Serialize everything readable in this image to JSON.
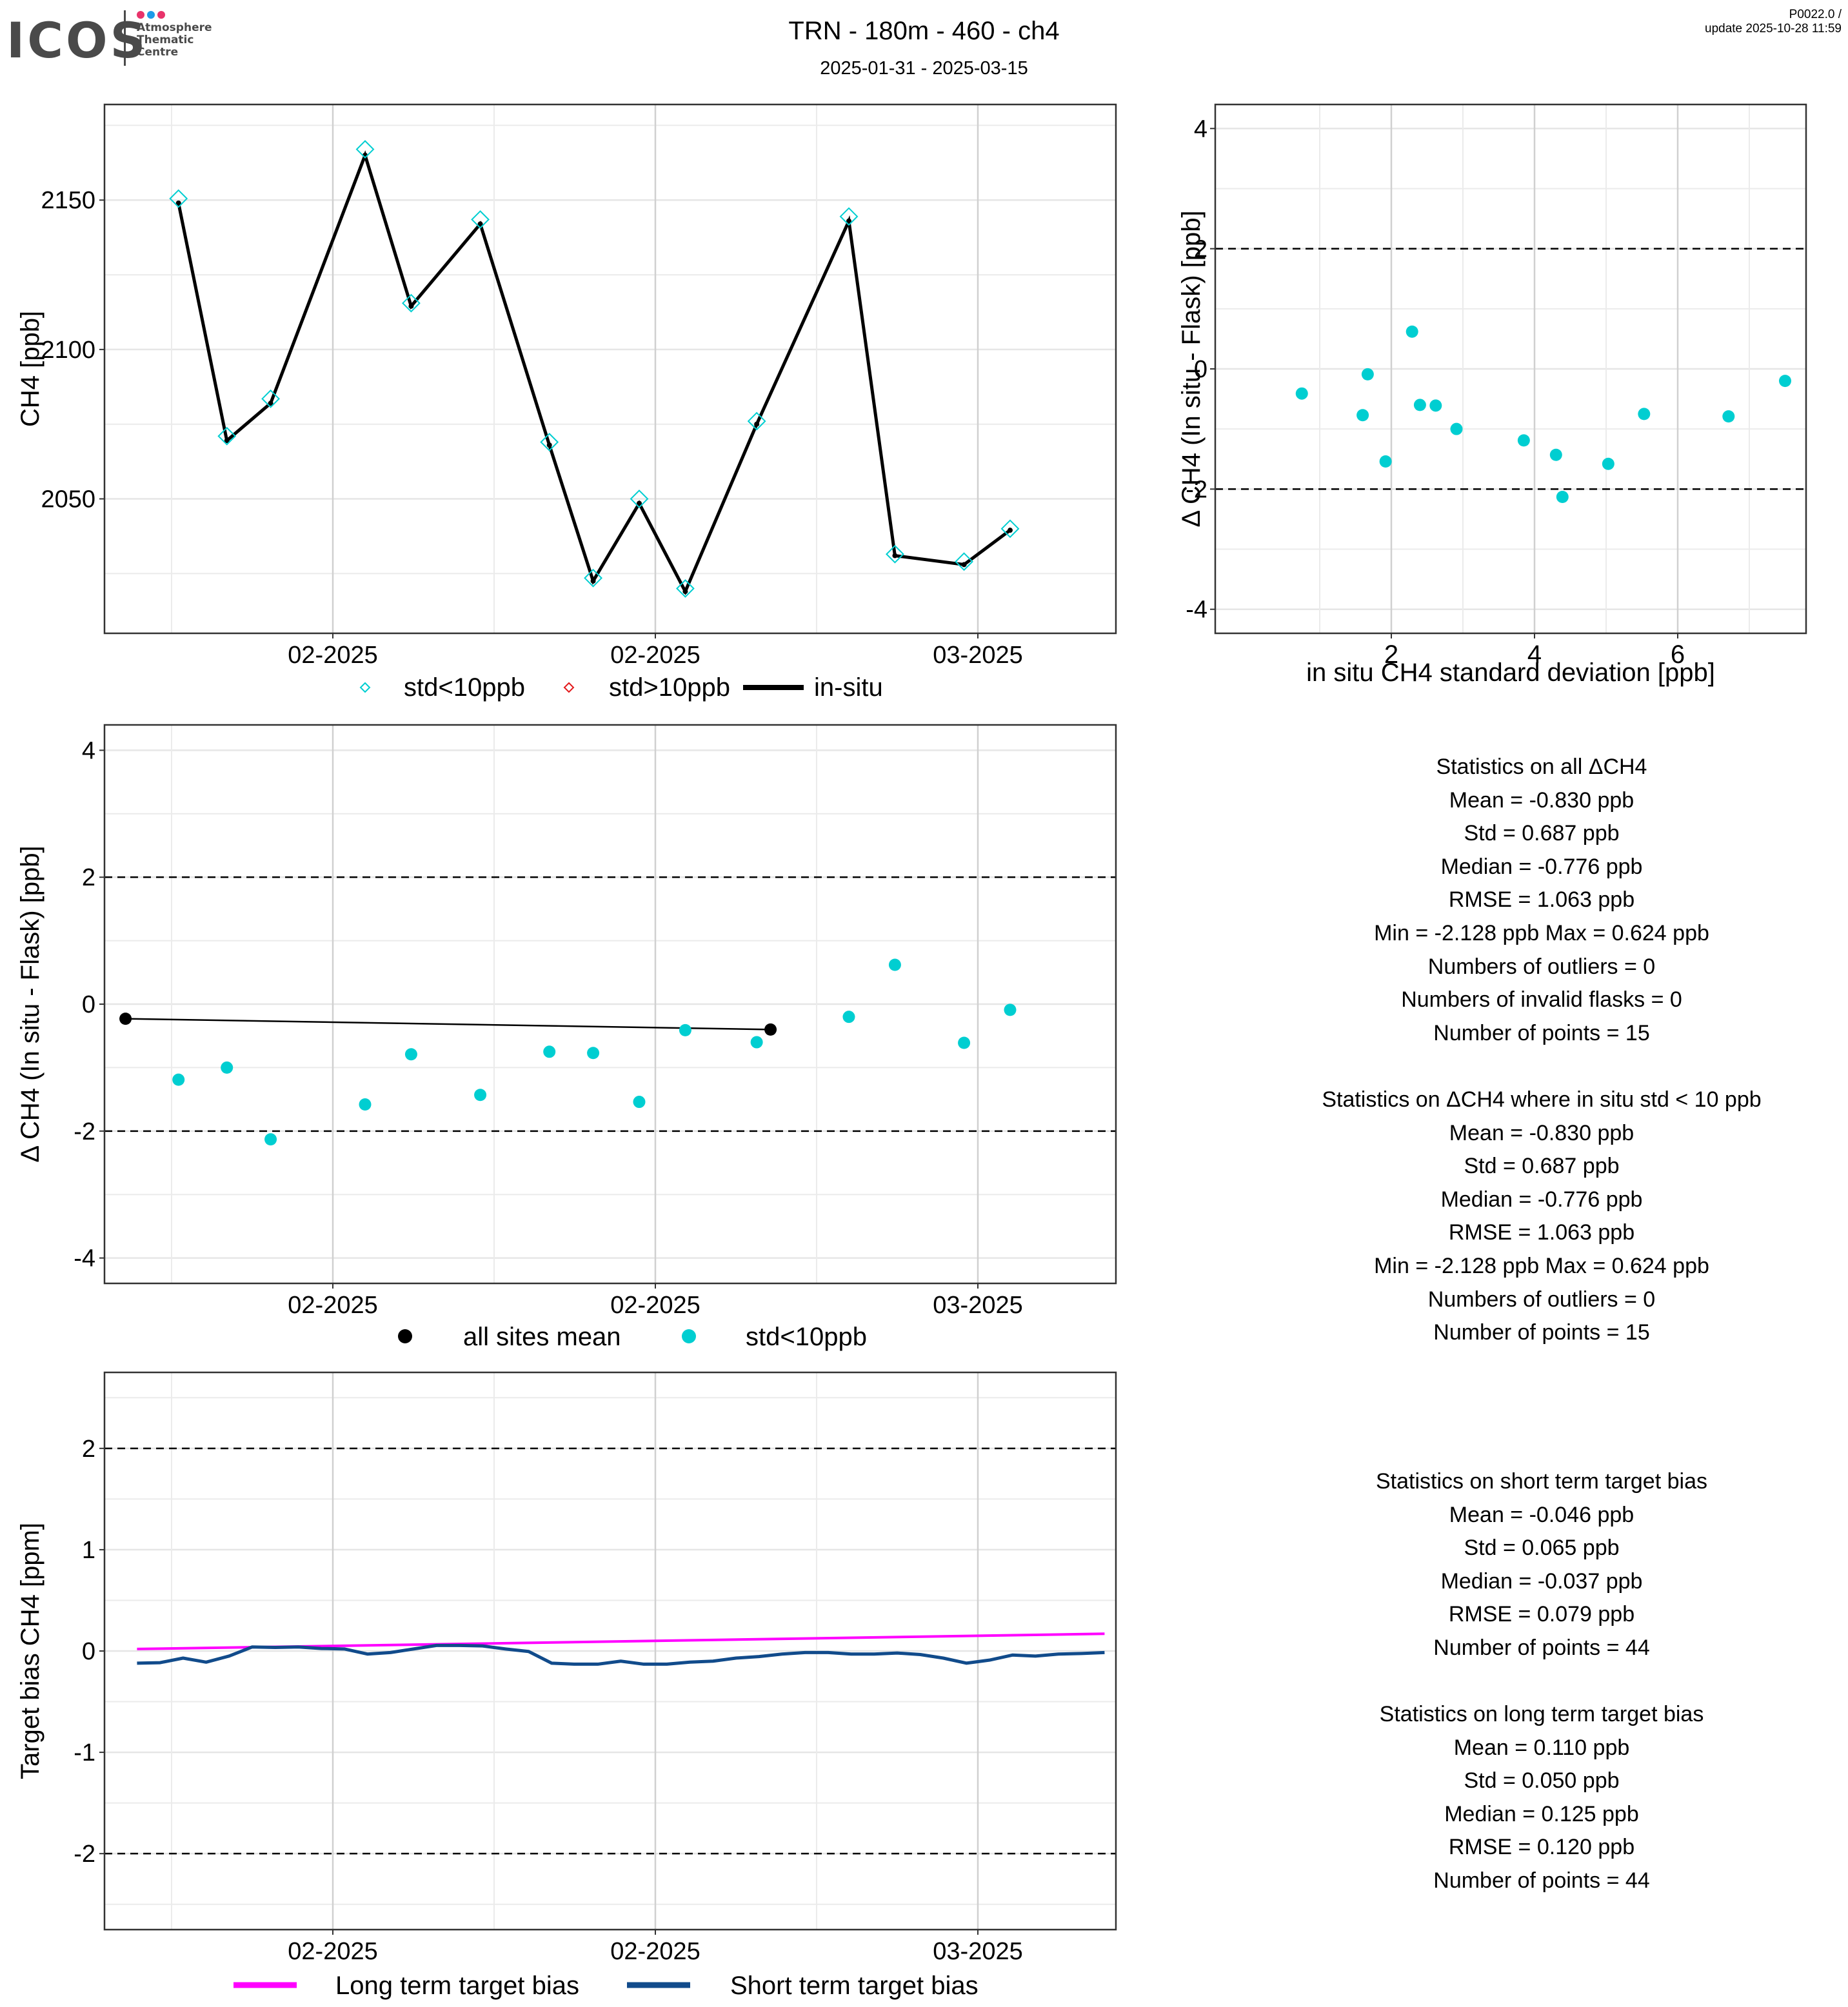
{
  "header": {
    "logo": {
      "name": "ICOS",
      "sub": [
        "Atmosphere",
        "Thematic",
        "Centre"
      ],
      "dot_colors": [
        "#e8336b",
        "#1e9be8",
        "#e8336b"
      ]
    },
    "title": "TRN - 180m - 460 - ch4",
    "subtitle": "2025-01-31 - 2025-03-15",
    "version": "P0022.0 /",
    "update": "update  2025-10-28 11:59"
  },
  "colors": {
    "cyan": "#00CED1",
    "red": "#E31A1C",
    "black": "#000000",
    "magenta": "#FF00FF",
    "navy": "#114B8B"
  },
  "chart_data": [
    {
      "id": "timeseries",
      "type": "line",
      "ylabel": "CH4 [ppb]",
      "ylim": [
        2005,
        2182
      ],
      "yticks": [
        2050,
        2100,
        2150
      ],
      "xlim_days": [
        -11.0,
        11.0
      ],
      "x_day_note": "days relative to 2025-02-15 tick",
      "xticks": [
        {
          "day": -14,
          "label": "02-2025"
        },
        {
          "day": 0,
          "label": "02-2025"
        },
        {
          "day": 14,
          "label": "03-2025"
        }
      ],
      "x_days": [
        -20.7,
        -18.6,
        -16.7,
        -12.6,
        -10.6,
        -7.6,
        -4.6,
        -2.7,
        -0.7,
        1.3,
        4.4,
        8.4,
        10.4,
        13.4,
        15.4
      ],
      "insitu": [
        2149,
        2069.5,
        2082,
        2165,
        2114.5,
        2142,
        2068,
        2022.5,
        2048.5,
        2019,
        2075,
        2143,
        2031,
        2028,
        2039.5
      ],
      "flask": [
        2150.5,
        2071,
        2083.5,
        2167,
        2115.5,
        2143.5,
        2069,
        2023.5,
        2050,
        2020,
        2076,
        2144.5,
        2031.5,
        2029,
        2040
      ],
      "legend": [
        {
          "label": "std<10ppb",
          "marker": "diamond-open",
          "color": "#00CED1"
        },
        {
          "label": "std>10ppb",
          "marker": "diamond-open",
          "color": "#E31A1C"
        },
        {
          "label": "in-situ",
          "marker": "line",
          "color": "#000000"
        }
      ],
      "grid": true
    },
    {
      "id": "std-scatter",
      "type": "scatter",
      "xlabel": "in situ CH4 standard deviation [ppb]",
      "ylabel": "Δ CH4 (In situ - Flask) [ppb]",
      "xlim": [
        0.35,
        7.85
      ],
      "ylim": [
        -4.4,
        4.4
      ],
      "xticks": [
        2,
        4,
        6
      ],
      "yticks": [
        -4,
        -2,
        0,
        2,
        4
      ],
      "hlines": [
        2,
        -2
      ],
      "x": [
        0.75,
        1.6,
        1.67,
        1.92,
        2.29,
        2.4,
        2.62,
        2.91,
        3.85,
        4.3,
        4.39,
        5.03,
        5.53,
        6.71,
        7.5
      ],
      "y": [
        -0.41,
        -0.77,
        -0.09,
        -1.54,
        0.62,
        -0.6,
        -0.61,
        -1.0,
        -1.19,
        -1.43,
        -2.13,
        -1.58,
        -0.75,
        -0.79,
        -0.2
      ],
      "color": "#00CED1",
      "grid": true
    },
    {
      "id": "delta-timeseries",
      "type": "scatter",
      "ylabel": "Δ CH4 (In situ - Flask) [ppb]",
      "ylim": [
        -4.4,
        4.4
      ],
      "yticks": [
        -4,
        -2,
        0,
        2,
        4
      ],
      "hlines": [
        2,
        -2
      ],
      "xticks": [
        {
          "day": -14,
          "label": "02-2025"
        },
        {
          "day": 0,
          "label": "02-2025"
        },
        {
          "day": 14,
          "label": "03-2025"
        }
      ],
      "std_lt10": {
        "x_days": [
          -20.7,
          -18.6,
          -16.7,
          -12.6,
          -10.6,
          -7.6,
          -4.6,
          -2.7,
          -0.7,
          1.3,
          4.4,
          8.4,
          10.4,
          13.4,
          15.4
        ],
        "y": [
          -1.19,
          -1.0,
          -2.13,
          -1.58,
          -0.79,
          -1.43,
          -0.75,
          -0.77,
          -1.54,
          -0.41,
          -0.6,
          -0.2,
          0.62,
          -0.61,
          -0.09
        ]
      },
      "all_sites_mean": {
        "x_days": [
          -23.0,
          5.0
        ],
        "y": [
          -0.23,
          -0.4
        ]
      },
      "legend": [
        {
          "label": "all sites mean",
          "marker": "dot",
          "color": "#000000"
        },
        {
          "label": "std<10ppb",
          "marker": "dot",
          "color": "#00CED1"
        }
      ],
      "grid": true
    },
    {
      "id": "target-bias",
      "type": "line",
      "ylabel": "Target bias CH4 [ppm]",
      "ylim": [
        -2.75,
        2.75
      ],
      "yticks": [
        -2,
        -1,
        0,
        1,
        2
      ],
      "hlines": [
        2,
        -2
      ],
      "xticks": [
        {
          "day": -14,
          "label": "02-2025"
        },
        {
          "day": 0,
          "label": "02-2025"
        },
        {
          "day": 14,
          "label": "03-2025"
        }
      ],
      "long_term": {
        "x_days": [
          -22.5,
          19.5
        ],
        "y": [
          0.02,
          0.17
        ]
      },
      "short_term": {
        "x_days": [
          -22.5,
          -21.5,
          -20.5,
          -19.5,
          -18.5,
          -17.5,
          -16.5,
          -15.5,
          -14.5,
          -13.5,
          -12.5,
          -11.5,
          -10.5,
          -9.5,
          -8.5,
          -7.5,
          -6.5,
          -5.5,
          -4.5,
          -3.5,
          -2.5,
          -1.5,
          -0.5,
          0.5,
          1.5,
          2.5,
          3.5,
          4.5,
          5.5,
          6.5,
          7.5,
          8.5,
          9.5,
          10.5,
          11.5,
          12.5,
          13.5,
          14.5,
          15.5,
          16.5,
          17.5,
          18.5,
          19.5
        ],
        "y": [
          -0.12,
          -0.115,
          -0.07,
          -0.11,
          -0.05,
          0.04,
          0.035,
          0.04,
          0.025,
          0.02,
          -0.03,
          -0.015,
          0.02,
          0.055,
          0.055,
          0.05,
          0.02,
          -0.005,
          -0.12,
          -0.13,
          -0.13,
          -0.1,
          -0.13,
          -0.13,
          -0.11,
          -0.1,
          -0.07,
          -0.055,
          -0.03,
          -0.015,
          -0.015,
          -0.03,
          -0.03,
          -0.02,
          -0.035,
          -0.07,
          -0.12,
          -0.09,
          -0.04,
          -0.05,
          -0.03,
          -0.025,
          -0.015
        ]
      },
      "legend": [
        {
          "label": "Long term target bias",
          "color": "#FF00FF"
        },
        {
          "label": "Short term target bias",
          "color": "#114B8B"
        }
      ],
      "grid": true
    }
  ],
  "stats": {
    "all": {
      "title": "Statistics on all ΔCH4",
      "lines": [
        "Mean =  -0.830 ppb",
        "Std =  0.687 ppb",
        "Median =  -0.776 ppb",
        "RMSE =  1.063 ppb",
        "Min =  -2.128 ppb Max =  0.624 ppb",
        "Numbers of outliers =  0",
        "Numbers of invalid flasks =  0",
        "Number of points =  15"
      ]
    },
    "std_lt10": {
      "title": "Statistics on ΔCH4 where in situ std < 10 ppb",
      "lines": [
        "Mean =  -0.830 ppb",
        "Std =  0.687 ppb",
        "Median =  -0.776 ppb",
        "RMSE =  1.063 ppb",
        "Min =  -2.128 ppb Max =  0.624 ppb",
        "Numbers of outliers =  0",
        "Number of points =  15"
      ]
    },
    "short_term": {
      "title": "Statistics on short term target bias",
      "lines": [
        "Mean =  -0.046 ppb",
        "Std =  0.065 ppb",
        "Median =  -0.037 ppb",
        "RMSE =  0.079 ppb",
        "Number of points =  44"
      ]
    },
    "long_term": {
      "title": "Statistics on long term target bias",
      "lines": [
        "Mean =  0.110 ppb",
        "Std =  0.050 ppb",
        "Median =  0.125 ppb",
        "RMSE =  0.120 ppb",
        "Number of points =  44"
      ]
    }
  }
}
